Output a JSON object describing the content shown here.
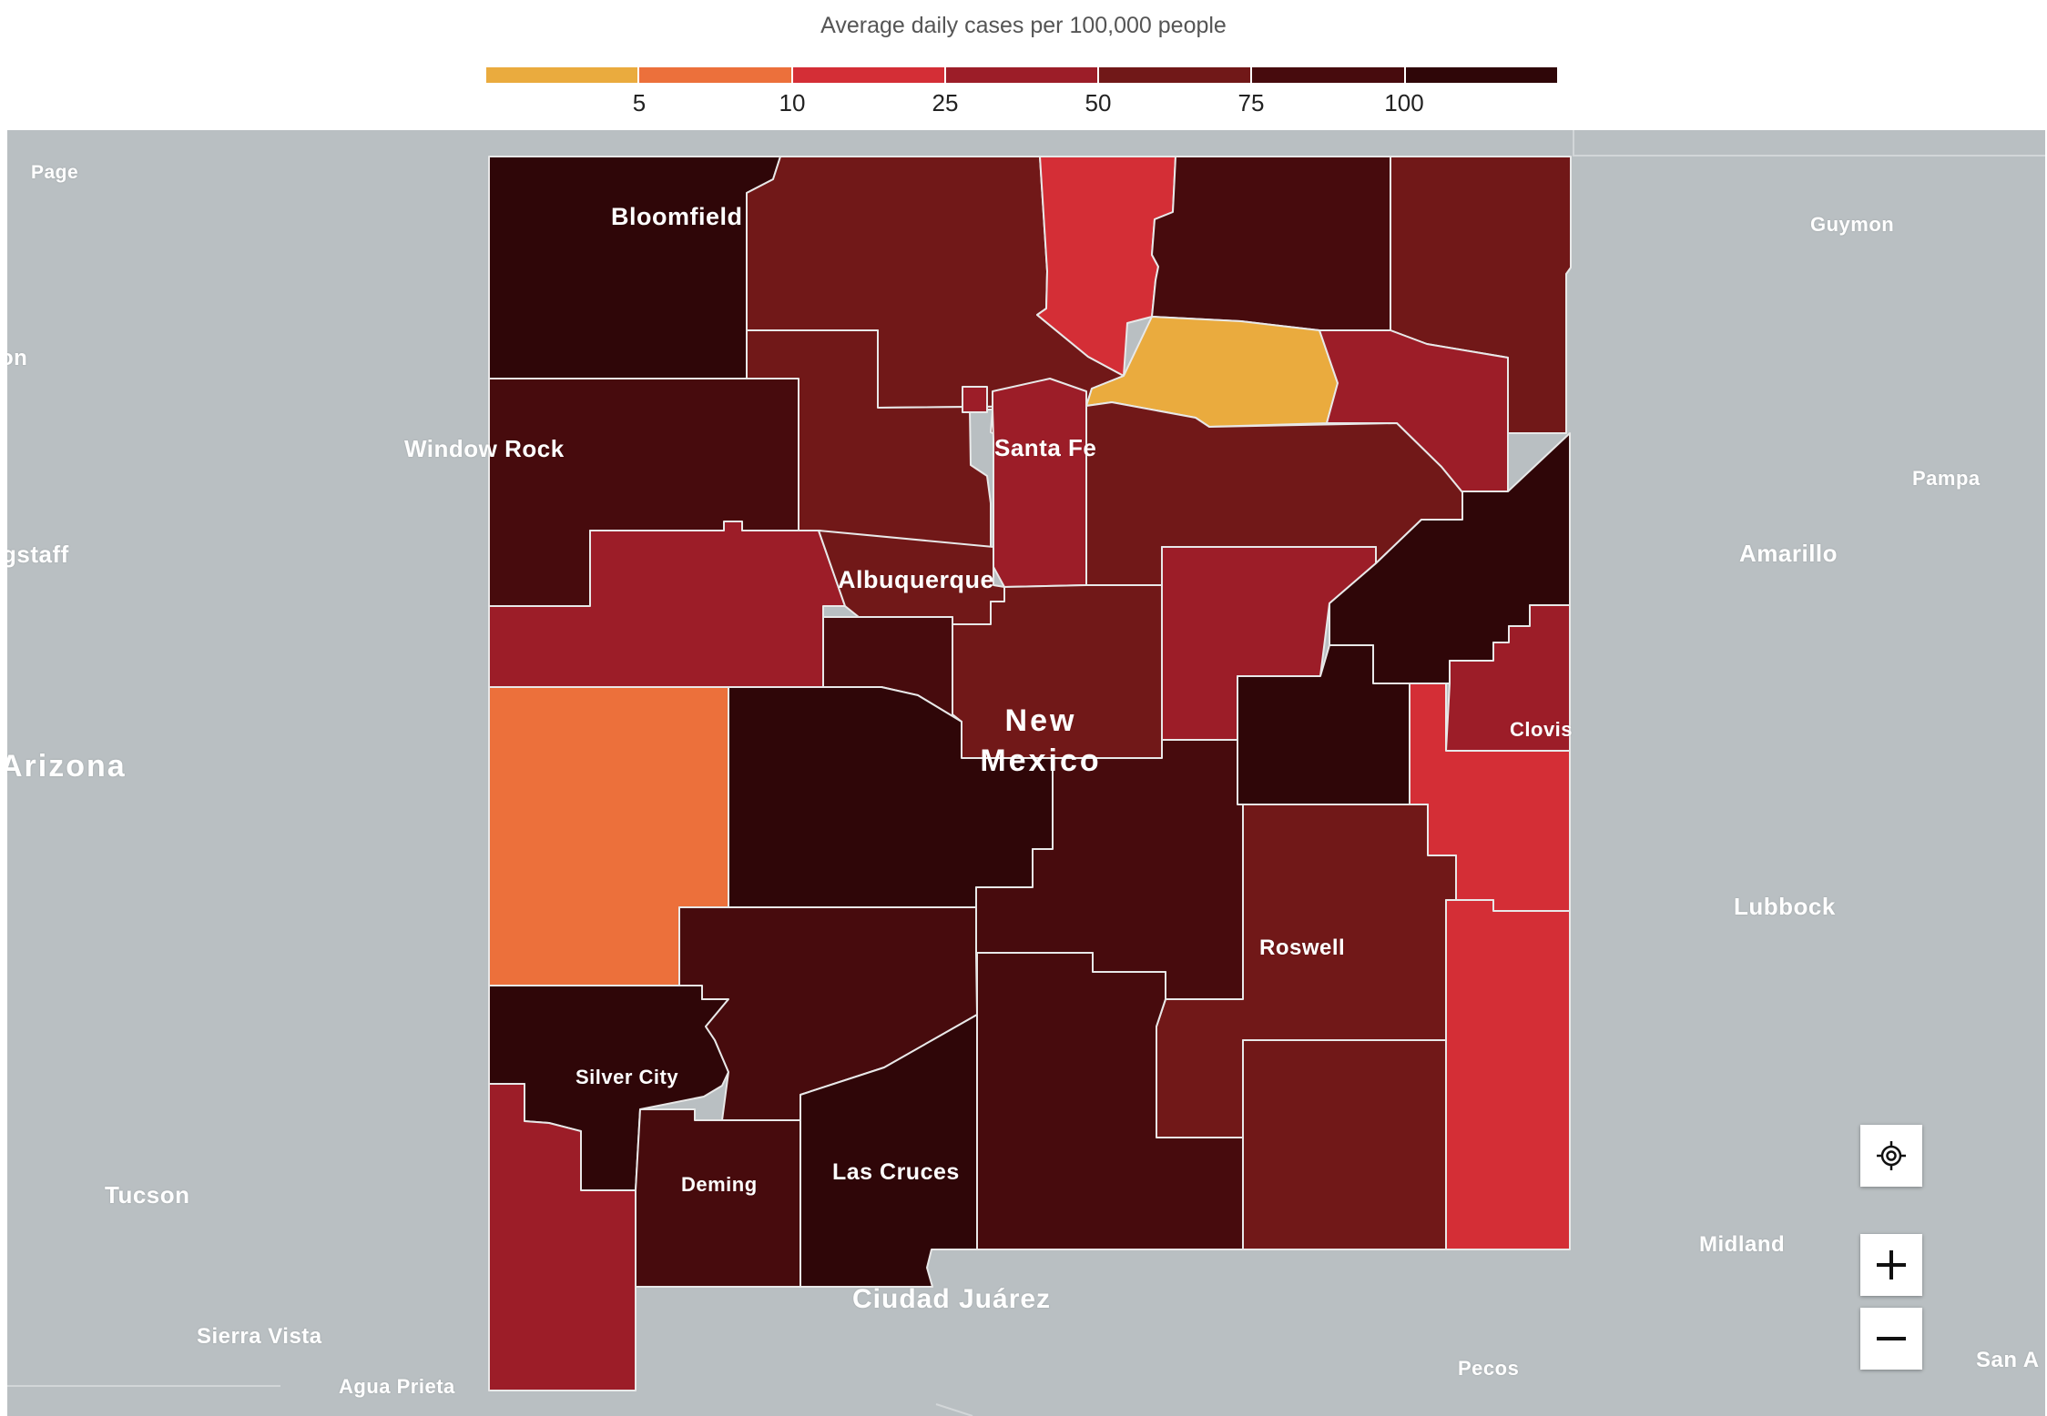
{
  "legend": {
    "title": "Average daily cases per 100,000 people",
    "colors": [
      "#eaab3e",
      "#ec703b",
      "#d42e36",
      "#9c1d28",
      "#711818",
      "#470b0d",
      "#2f0608"
    ],
    "ticks": [
      "5",
      "10",
      "25",
      "50",
      "75",
      "100"
    ]
  },
  "map": {
    "background_color": "#b9bfc2",
    "state_label": [
      "New",
      "Mexico"
    ],
    "state": "New Mexico",
    "place_labels": {
      "page": "Page",
      "guymon": "Guymon",
      "on": "on",
      "gstaff": "gstaff",
      "window_rock": "Window Rock",
      "pampa": "Pampa",
      "amarillo": "Amarillo",
      "arizona": "Arizona",
      "lubbock": "Lubbock",
      "tucson": "Tucson",
      "midland": "Midland",
      "sierra_vista": "Sierra Vista",
      "agua_prieta": "Agua Prieta",
      "pecos": "Pecos",
      "san_a": "San A",
      "ciudad_juarez": "Ciudad Juárez"
    },
    "city_labels": {
      "bloomfield": "Bloomfield",
      "santa_fe": "Santa Fe",
      "albuquerque": "Albuquerque",
      "clovis": "Clovis",
      "roswell": "Roswell",
      "silver_city": "Silver City",
      "deming": "Deming",
      "las_cruces": "Las Cruces"
    }
  },
  "controls": {
    "locate_icon": "crosshair-target-icon",
    "zoom_in_icon": "plus-icon",
    "zoom_out_icon": "minus-icon"
  }
}
